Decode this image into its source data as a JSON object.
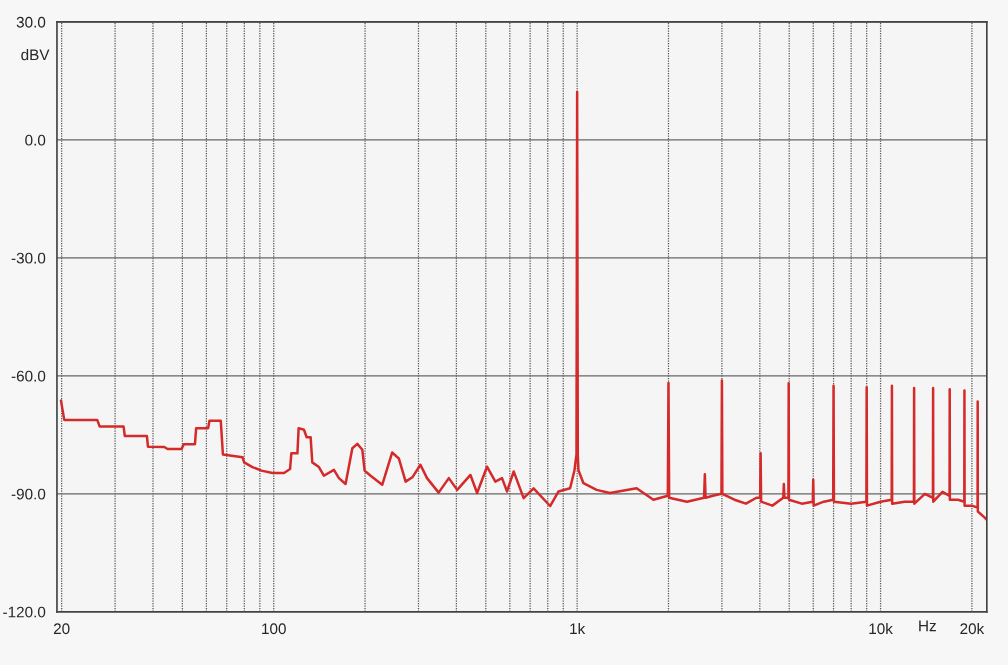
{
  "chart_data": {
    "type": "line",
    "xlabel": "Hz",
    "ylabel": "dBV",
    "log": "x",
    "grid": true,
    "marker": "none",
    "line_style": "solid",
    "xlim": [
      19.3,
      22400
    ],
    "ylim": [
      -120,
      30
    ],
    "xticks": [
      20,
      {
        "value": 30,
        "label": null
      },
      {
        "value": 40,
        "label": null
      },
      {
        "value": 50,
        "label": null
      },
      {
        "value": 60,
        "label": null
      },
      {
        "value": 70,
        "label": null
      },
      {
        "value": 80,
        "label": null
      },
      {
        "value": 90,
        "label": null
      },
      100,
      {
        "value": 200,
        "label": null
      },
      {
        "value": 300,
        "label": null
      },
      {
        "value": 400,
        "label": null
      },
      {
        "value": 500,
        "label": null
      },
      {
        "value": 600,
        "label": null
      },
      {
        "value": 700,
        "label": null
      },
      {
        "value": 800,
        "label": null
      },
      {
        "value": 900,
        "label": null
      },
      {
        "value": 1000,
        "label": "1k"
      },
      {
        "value": 2000,
        "label": null
      },
      {
        "value": 3000,
        "label": null
      },
      {
        "value": 4000,
        "label": null
      },
      {
        "value": 5000,
        "label": null
      },
      {
        "value": 6000,
        "label": null
      },
      {
        "value": 7000,
        "label": null
      },
      {
        "value": 8000,
        "label": null
      },
      {
        "value": 9000,
        "label": null
      },
      {
        "value": 10000,
        "label": "10k"
      },
      {
        "value": 20000,
        "label": "20k"
      }
    ],
    "yticks": [
      {
        "value": 30,
        "label": "30.0"
      },
      {
        "value": 0,
        "label": "0.0"
      },
      {
        "value": -30,
        "label": "-30.0"
      },
      {
        "value": -60,
        "label": "-60.0"
      },
      {
        "value": -90,
        "label": "-90.0"
      },
      {
        "value": -120,
        "label": "-120.0"
      }
    ],
    "series": [
      {
        "color": "#d42a2a",
        "x": [
          19.9,
          20.4,
          26.2,
          26.7,
          32.0,
          32.3,
          38.2,
          38.5,
          43.6,
          44.7,
          49.7,
          50.5,
          55.0,
          55.5,
          60.8,
          61.4,
          66.9,
          68.0,
          78.9,
          79.9,
          85.1,
          91.1,
          99,
          108.1,
          113.2,
          114.3,
          119.7,
          120.8,
          125.8,
          128.4,
          132.3,
          134.0,
          140.9,
          146.3,
          157.9,
          164,
          172.5,
          181.6,
          188.6,
          195.9,
          199.3,
          208.6,
          227.8,
          245.6,
          258.4,
          272.1,
          286.4,
          304.4,
          320,
          349.6,
          377.6,
          402.4,
          445,
          468,
          504.6,
          537.6,
          565.4,
          587.6,
          617.8,
          666.3,
          718.6,
          814.6,
          868.3,
          948,
          980,
          995,
          1000,
          1005,
          1010,
          1049,
          1159,
          1283,
          1570,
          1784,
          1990,
          2000,
          2010,
          2300,
          2620,
          2636,
          2650,
          2800,
          2990,
          3000,
          3010,
          3300,
          3600,
          3900,
          4010,
          4024,
          4040,
          4400,
          4780,
          4800,
          4820,
          4970,
          4980,
          4990,
          5500,
          5980,
          6000,
          6020,
          6500,
          6980,
          7000,
          7020,
          8000,
          8980,
          9000,
          9020,
          10000,
          10880,
          10900,
          10920,
          12000,
          12880,
          12900,
          12920,
          14000,
          14880,
          14900,
          14920,
          16000,
          16880,
          16900,
          16920,
          18000,
          18880,
          18900,
          18920,
          20000,
          20880,
          20900,
          20920,
          22000,
          22400
        ],
        "values": [
          -66.3,
          -71.2,
          -71.2,
          -72.9,
          -72.9,
          -75.3,
          -75.3,
          -78.0,
          -78.1,
          -78.6,
          -78.6,
          -77.4,
          -77.4,
          -73.3,
          -73.3,
          -71.4,
          -71.4,
          -80.0,
          -80.7,
          -82.0,
          -83.2,
          -84.1,
          -84.7,
          -84.7,
          -83.7,
          -79.7,
          -79.7,
          -73.3,
          -73.7,
          -75.6,
          -75.6,
          -82.0,
          -83.2,
          -85.4,
          -83.9,
          -86.0,
          -87.5,
          -78.4,
          -77.3,
          -78.8,
          -84.1,
          -85.4,
          -87.7,
          -79.5,
          -81.0,
          -86.9,
          -85.8,
          -82.6,
          -86.0,
          -89.7,
          -86.0,
          -89.0,
          -85.2,
          -89.8,
          -83.1,
          -86.9,
          -86.0,
          -89.4,
          -84.3,
          -91.1,
          -88.6,
          -93.1,
          -89.4,
          -88.6,
          -84,
          -80,
          12.2,
          -80,
          -84,
          -87.3,
          -89.0,
          -89.8,
          -88.6,
          -91.5,
          -90.5,
          -61.8,
          -91,
          -92,
          -91,
          -85,
          -91,
          -90.5,
          -90,
          -61.2,
          -90,
          -91.5,
          -92.5,
          -91,
          -91,
          -79.7,
          -92,
          -93,
          -91,
          -87.5,
          -91,
          -91,
          -61.9,
          -91.5,
          -92.5,
          -92,
          -86.4,
          -93,
          -92,
          -91.5,
          -62.5,
          -92,
          -92.5,
          -92,
          -62.9,
          -93,
          -92,
          -91.5,
          -62.5,
          -92.5,
          -92,
          -92,
          -63.1,
          -92.5,
          -90,
          -91,
          -63.1,
          -92,
          -89.5,
          -90.5,
          -63.4,
          -91.5,
          -91.5,
          -92,
          -63.7,
          -93,
          -93,
          -93.5,
          -66.5,
          -94.5,
          -96,
          -96.6
        ]
      }
    ]
  }
}
